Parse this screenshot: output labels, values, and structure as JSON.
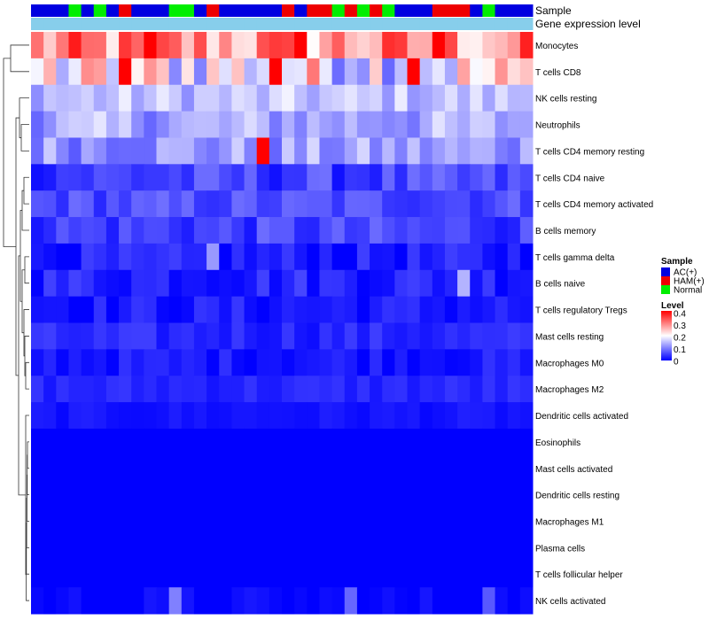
{
  "chart_data": {
    "type": "heatmap",
    "title": "",
    "annotation_tracks": [
      {
        "name": "Sample",
        "label": "Sample"
      },
      {
        "name": "Gene expression level",
        "label": "Gene expression level"
      }
    ],
    "sample_groups": [
      "AC(+)",
      "AC(+)",
      "AC(+)",
      "N",
      "AC(+)",
      "N",
      "AC(+)",
      "H",
      "AC(+)",
      "AC(+)",
      "AC(+)",
      "N",
      "N",
      "AC(+)",
      "H",
      "AC(+)",
      "AC(+)",
      "AC(+)",
      "AC(+)",
      "AC(+)",
      "H",
      "AC(+)",
      "H",
      "H",
      "N",
      "H",
      "N",
      "H",
      "N",
      "AC(+)",
      "AC(+)",
      "AC(+)",
      "H",
      "H",
      "H",
      "AC(+)",
      "N",
      "AC(+)",
      "AC(+)",
      "AC(+)"
    ],
    "rows": [
      "Monocytes",
      "T cells CD8",
      "NK cells resting",
      "Neutrophils",
      "T cells CD4 memory resting",
      "T cells CD4 naive",
      "T cells CD4 memory activated",
      "B cells memory",
      "T cells gamma delta",
      "B cells naive",
      "T cells regulatory  Tregs",
      "Mast cells resting",
      "Macrophages M0",
      "Macrophages M2",
      "Dendritic cells activated",
      "Eosinophils",
      "Mast cells activated",
      "Dendritic cells resting",
      "Macrophages M1",
      "Plasma cells",
      "T cells follicular helper",
      "NK cells activated"
    ],
    "row_base": [
      0.28,
      0.2,
      0.15,
      0.13,
      0.12,
      0.05,
      0.06,
      0.05,
      0.02,
      0.03,
      0.02,
      0.03,
      0.02,
      0.03,
      0.015,
      0.0,
      0.0,
      0.0,
      0.0,
      0.0,
      0.0,
      0.0
    ],
    "row_var": [
      0.1,
      0.12,
      0.04,
      0.05,
      0.05,
      0.04,
      0.03,
      0.035,
      0.03,
      0.03,
      0.025,
      0.02,
      0.02,
      0.015,
      0.01,
      0.0,
      0.0,
      0.0,
      0.0,
      0.0,
      0.0,
      0.02
    ],
    "highlights": [
      {
        "row": 4,
        "col": 18,
        "value": 0.4
      },
      {
        "row": 0,
        "col": 9,
        "value": 0.4
      },
      {
        "row": 0,
        "col": 21,
        "value": 0.4
      },
      {
        "row": 1,
        "col": 7,
        "value": 0.4
      },
      {
        "row": 1,
        "col": 19,
        "value": 0.4
      },
      {
        "row": 1,
        "col": 30,
        "value": 0.4
      },
      {
        "row": 0,
        "col": 32,
        "value": 0.4
      },
      {
        "row": 8,
        "col": 14,
        "value": 0.12
      },
      {
        "row": 9,
        "col": 34,
        "value": 0.14
      },
      {
        "row": 21,
        "col": 11,
        "value": 0.1
      },
      {
        "row": 21,
        "col": 25,
        "value": 0.08
      },
      {
        "row": 21,
        "col": 36,
        "value": 0.07
      }
    ],
    "legend": {
      "sample_title": "Sample",
      "sample_entries": [
        {
          "label": "AC(+)",
          "color": "#0000E0"
        },
        {
          "label": "HAM(+)",
          "color": "#EE0000"
        },
        {
          "label": "Normal",
          "color": "#00EE00"
        }
      ],
      "level_title": "Level",
      "level_ticks": [
        "0.4",
        "0.3",
        "0.2",
        "0.1",
        "0"
      ],
      "level_range": [
        0,
        0.4
      ]
    },
    "colors": {
      "low": "#0000FF",
      "mid": "#FFFFFF",
      "high": "#FF0000",
      "expression_bar": "#87CEEB"
    }
  }
}
